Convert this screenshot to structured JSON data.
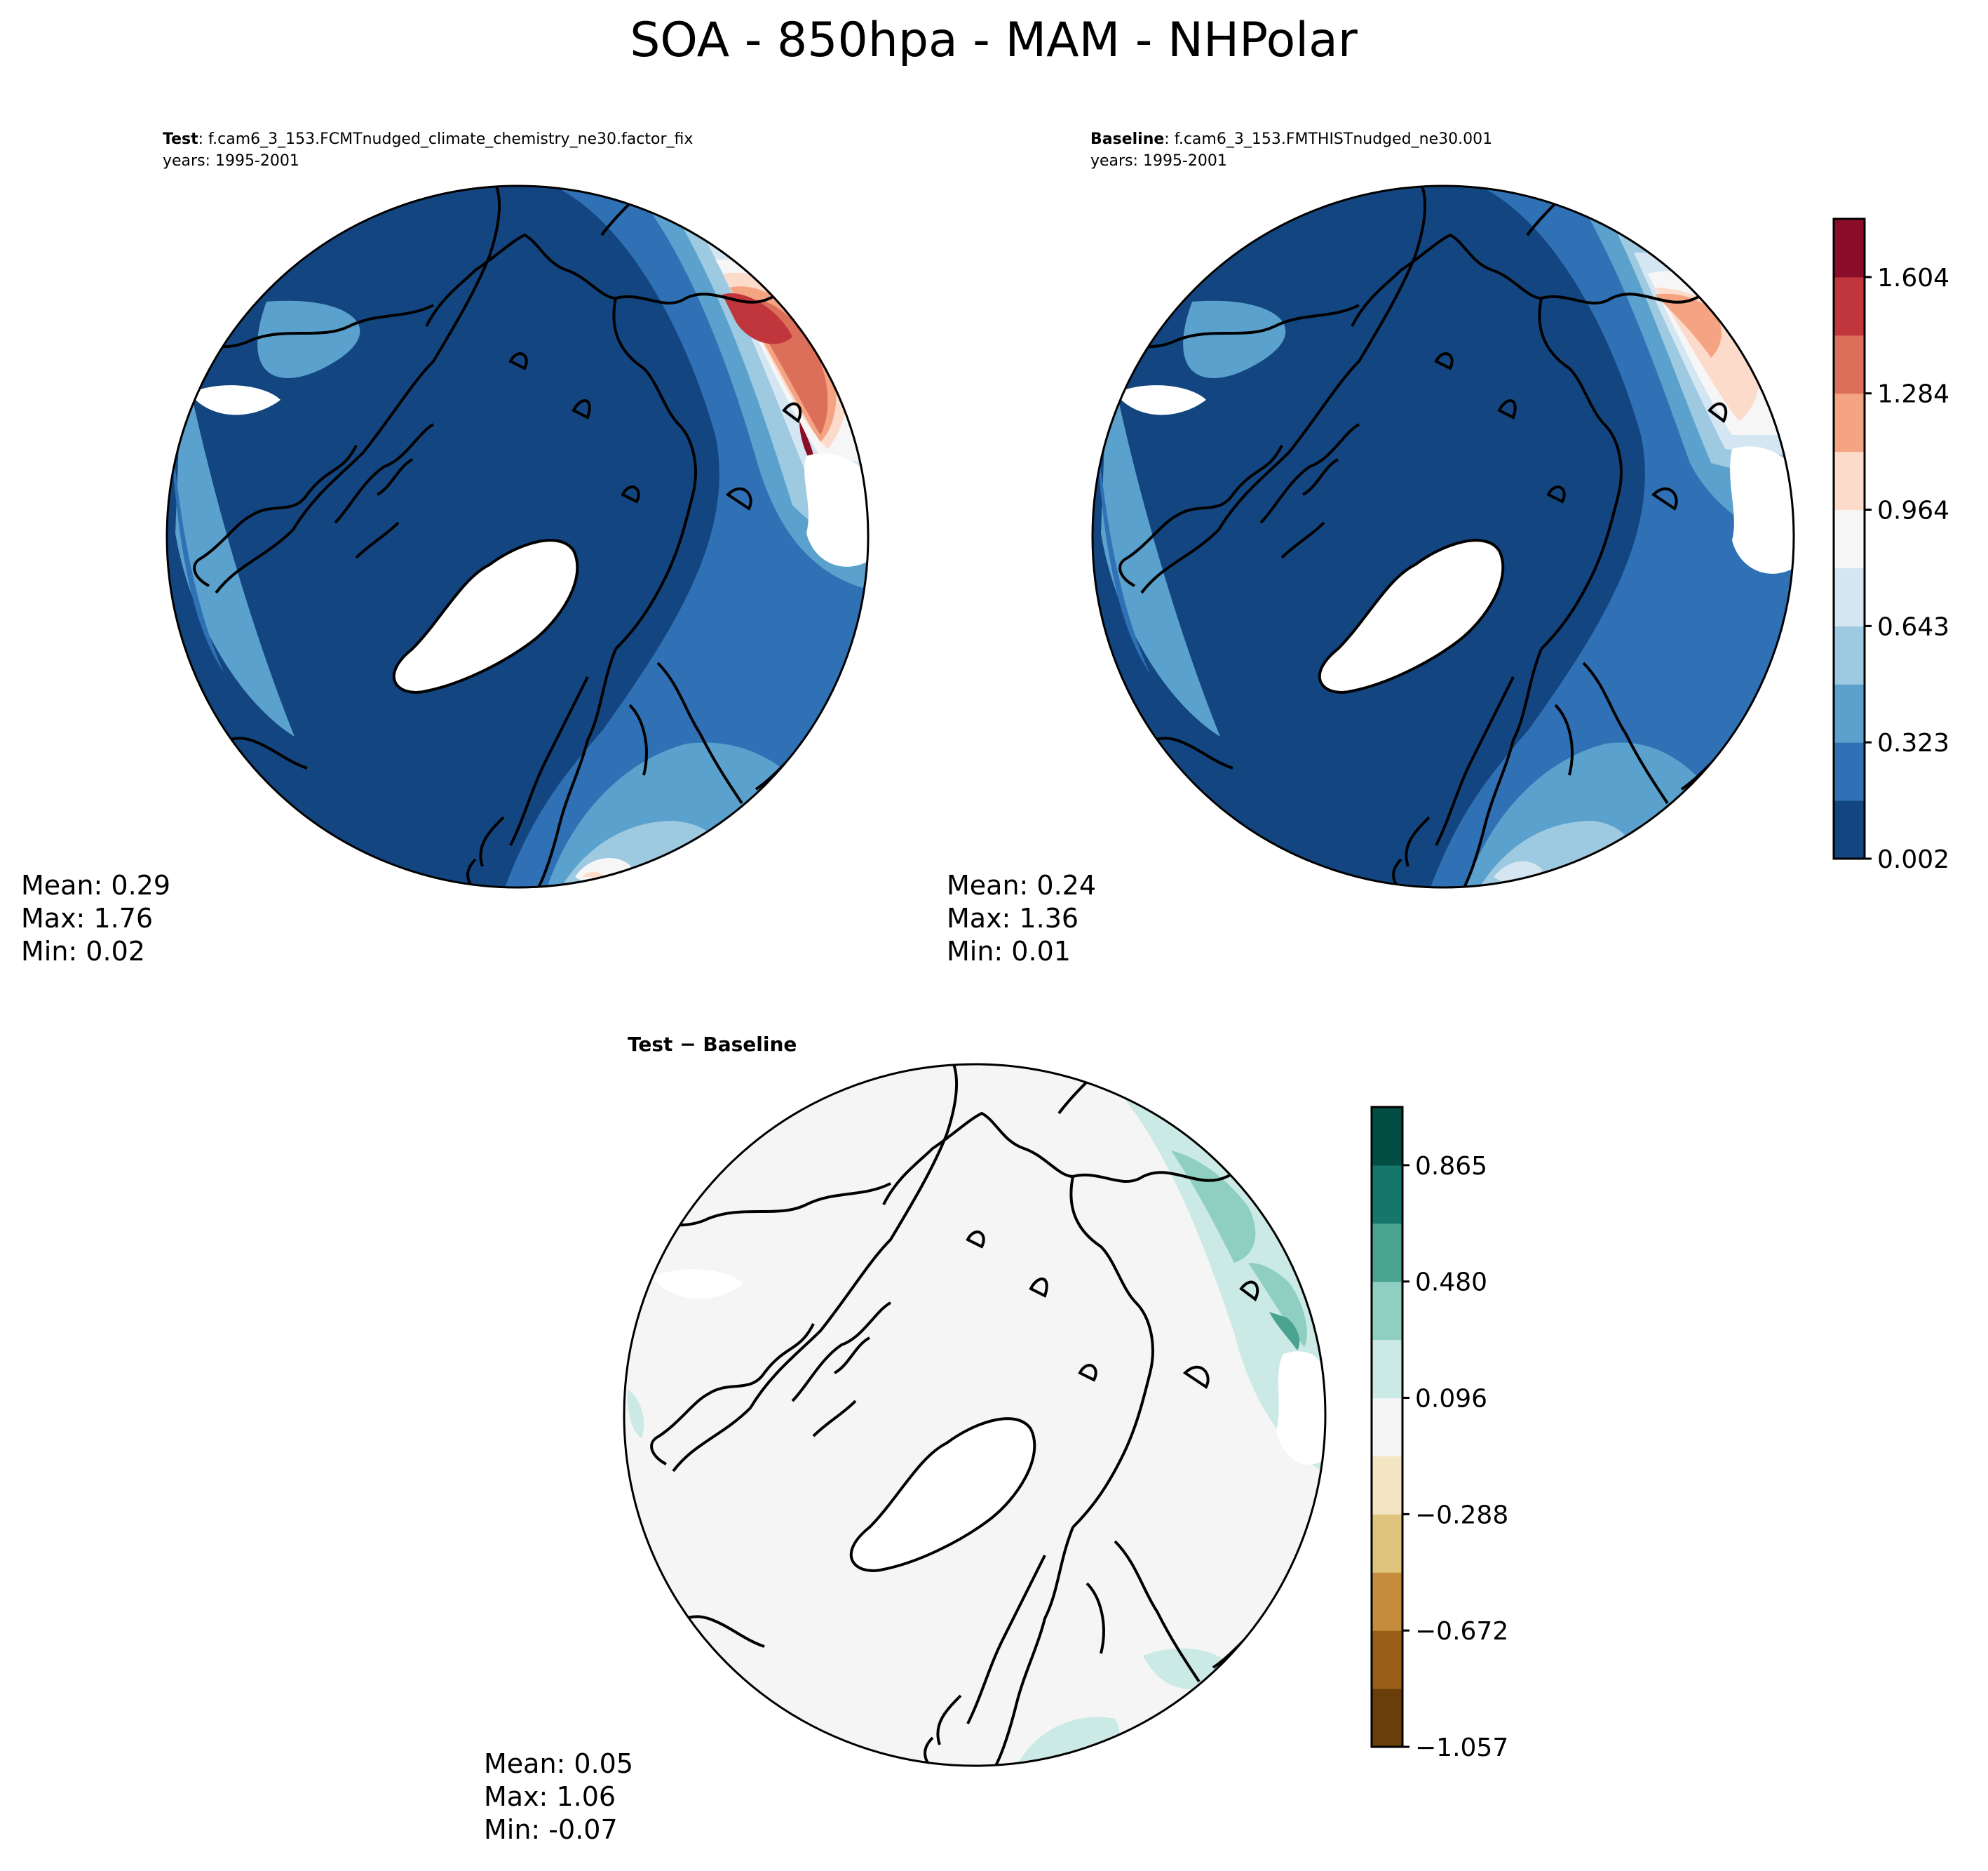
{
  "title": "SOA - 850hpa - MAM - NHPolar",
  "chart_data": [
    {
      "type": "heatmap",
      "id": "test",
      "projection": "north-polar-stereographic",
      "label_bold": "Test",
      "label_rest": ": f.cam6_3_153.FCMTnudged_climate_chemistry_ne30.factor_fix",
      "years": "years: 1995-2001",
      "stats": [
        "Mean:  0.29",
        "Max:  1.76",
        "Min:  0.02"
      ]
    },
    {
      "type": "heatmap",
      "id": "baseline",
      "projection": "north-polar-stereographic",
      "label_bold": "Baseline",
      "label_rest": ": f.cam6_3_153.FMTHISTnudged_ne30.001",
      "years": "years: 1995-2001",
      "stats": [
        "Mean:  0.24",
        "Max:  1.36",
        "Min:  0.01"
      ]
    },
    {
      "type": "heatmap",
      "id": "difference",
      "projection": "north-polar-stereographic",
      "label_bold": "Test − Baseline",
      "stats": [
        "Mean:  0.05",
        "Max:  1.06",
        "Min: -0.07"
      ]
    }
  ],
  "colorbars": {
    "main": {
      "colormap": "RdBu_r",
      "range": [
        0.002,
        1.764
      ],
      "tick_labels": [
        "0.002",
        "0.323",
        "0.643",
        "0.964",
        "1.284",
        "1.604"
      ],
      "colors": [
        "#134681",
        "#2f71b4",
        "#5aa1cd",
        "#9dc9e1",
        "#d4e6f1",
        "#f7f6f6",
        "#fcdbcb",
        "#f4a482",
        "#dc6f59",
        "#c1363c",
        "#8b0d2a"
      ]
    },
    "diff": {
      "colormap": "BrBG",
      "range": [
        -1.057,
        1.057
      ],
      "tick_labels": [
        "−1.057",
        "−0.672",
        "−0.288",
        "0.096",
        "0.480",
        "0.865"
      ],
      "colors": [
        "#6a3e0a",
        "#985e18",
        "#c48c3c",
        "#dfc47e",
        "#f3e5c2",
        "#f4f5f4",
        "#cceae5",
        "#8ecfc1",
        "#4aa291",
        "#157669",
        "#014d42"
      ]
    }
  }
}
